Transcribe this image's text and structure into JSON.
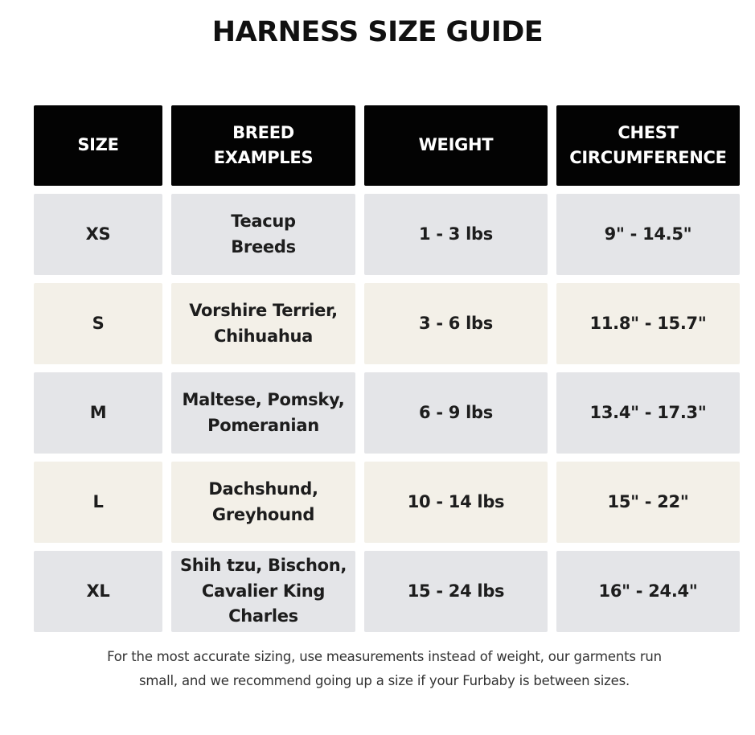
{
  "title": "HARNESS SIZE GUIDE",
  "colors": {
    "header_bg": "#030303",
    "row_gray": "#e4e5e8",
    "row_cream": "#f3f0e8"
  },
  "headers": [
    "SIZE",
    "BREED\nEXAMPLES",
    "WEIGHT",
    "CHEST\nCIRCUMFERENCE"
  ],
  "rows": [
    {
      "size": "XS",
      "breeds": "Teacup\nBreeds",
      "weight": "1 - 3 lbs",
      "chest": "9\" - 14.5\""
    },
    {
      "size": "S",
      "breeds": "Vorshire Terrier,\nChihuahua",
      "weight": "3 - 6 lbs",
      "chest": "11.8\" - 15.7\""
    },
    {
      "size": "M",
      "breeds": "Maltese, Pomsky,\nPomeranian",
      "weight": "6 - 9 lbs",
      "chest": "13.4\" - 17.3\""
    },
    {
      "size": "L",
      "breeds": "Dachshund,\nGreyhound",
      "weight": "10 - 14 lbs",
      "chest": "15\" - 22\""
    },
    {
      "size": "XL",
      "breeds": "Shih tzu, Bischon,\nCavalier King\nCharles",
      "weight": "15 - 24 lbs",
      "chest": "16\" - 24.4\""
    }
  ],
  "footer": {
    "line1": "For the most accurate sizing, use measurements instead of weight, our garments run",
    "line2": "small, and we recommend going up a size if your Furbaby is between sizes."
  }
}
